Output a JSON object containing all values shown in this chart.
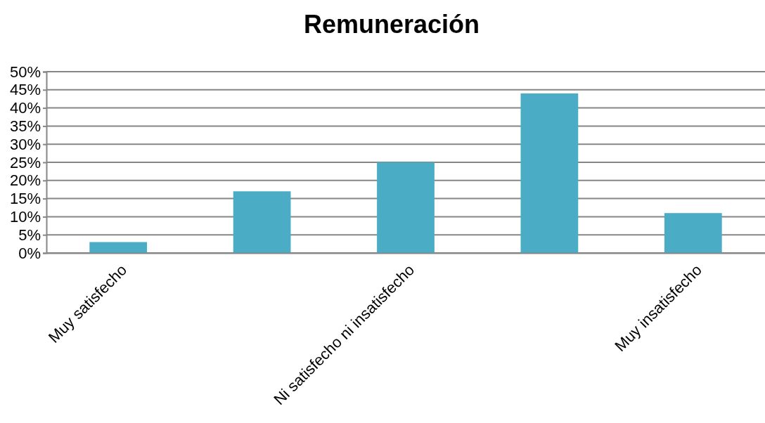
{
  "chart_data": {
    "type": "bar",
    "title": "Remuneración",
    "categories": [
      "Muy satisfecho",
      null,
      "Ni satisfecho ni insatisfecho",
      null,
      "Muy insatisfecho"
    ],
    "values": [
      3,
      17,
      25,
      44,
      11
    ],
    "color": "#4bacc6",
    "ylim": [
      0,
      50
    ],
    "yticks": [
      {
        "value": 0,
        "label": "0%"
      },
      {
        "value": 5,
        "label": "5%"
      },
      {
        "value": 10,
        "label": "10%"
      },
      {
        "value": 15,
        "label": "15%"
      },
      {
        "value": 20,
        "label": "20%"
      },
      {
        "value": 25,
        "label": "25%"
      },
      {
        "value": 30,
        "label": "30%"
      },
      {
        "value": 35,
        "label": "35%"
      },
      {
        "value": 40,
        "label": "40%"
      },
      {
        "value": 45,
        "label": "45%"
      },
      {
        "value": 50,
        "label": "50%"
      }
    ],
    "grid": "y"
  }
}
